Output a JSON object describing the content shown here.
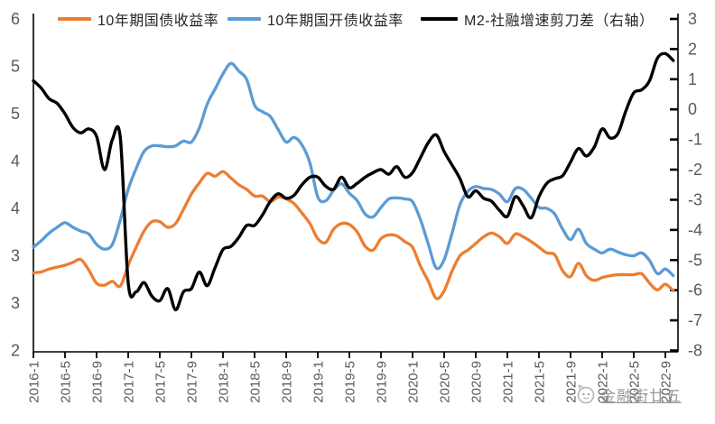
{
  "legend": [
    {
      "label": "10年期国债收益率",
      "color": "#ED7D31"
    },
    {
      "label": "10年期国开债收益率",
      "color": "#5B9BD5"
    },
    {
      "label": "M2-社融增速剪刀差（右轴）",
      "color": "#000000"
    }
  ],
  "watermark": {
    "text": "金融街廿五"
  },
  "axis_text_color": "#595959",
  "chart_data": {
    "type": "line",
    "title": "",
    "grid": false,
    "legend_position": "top",
    "months": [
      "2016-1",
      "2016-2",
      "2016-3",
      "2016-4",
      "2016-5",
      "2016-6",
      "2016-7",
      "2016-8",
      "2016-9",
      "2016-10",
      "2016-11",
      "2016-12",
      "2017-1",
      "2017-2",
      "2017-3",
      "2017-4",
      "2017-5",
      "2017-6",
      "2017-7",
      "2017-8",
      "2017-9",
      "2017-10",
      "2017-11",
      "2017-12",
      "2018-1",
      "2018-2",
      "2018-3",
      "2018-4",
      "2018-5",
      "2018-6",
      "2018-7",
      "2018-8",
      "2018-9",
      "2018-10",
      "2018-11",
      "2018-12",
      "2019-1",
      "2019-2",
      "2019-3",
      "2019-4",
      "2019-5",
      "2019-6",
      "2019-7",
      "2019-8",
      "2019-9",
      "2019-10",
      "2019-11",
      "2019-12",
      "2020-1",
      "2020-2",
      "2020-3",
      "2020-4",
      "2020-5",
      "2020-6",
      "2020-7",
      "2020-8",
      "2020-9",
      "2020-10",
      "2020-11",
      "2020-12",
      "2021-1",
      "2021-2",
      "2021-3",
      "2021-4",
      "2021-5",
      "2021-6",
      "2021-7",
      "2021-8",
      "2021-9",
      "2021-10",
      "2021-11",
      "2021-12",
      "2022-1",
      "2022-2",
      "2022-3",
      "2022-4",
      "2022-5",
      "2022-6",
      "2022-7",
      "2022-8",
      "2022-9",
      "2022-10"
    ],
    "x_tick_every": 4,
    "x_tick_labels": [
      "2016-1",
      "2016-5",
      "2016-9",
      "2017-1",
      "2017-5",
      "2017-9",
      "2018-1",
      "2018-5",
      "2018-9",
      "2019-1",
      "2019-5",
      "2019-9",
      "2020-1",
      "2020-5",
      "2020-9",
      "2021-1",
      "2021-5",
      "2021-9",
      "2022-1",
      "2022-5",
      "2022-9"
    ],
    "left_axis": {
      "min": 2.5,
      "max": 6.0,
      "step": 0.5,
      "tick_labels": [
        "6",
        "5",
        "5",
        "4",
        "4",
        "3",
        "3",
        "2"
      ]
    },
    "right_axis": {
      "min": -8,
      "max": 3,
      "step": 1,
      "tick_labels": [
        "3",
        "2",
        "1",
        "0",
        "-1",
        "-2",
        "-3",
        "-4",
        "-5",
        "-6",
        "-7",
        "-8"
      ]
    },
    "series": [
      {
        "name": "10年期国债收益率",
        "axis": "left",
        "color": "#ED7D31",
        "width": 3.3,
        "values": [
          3.32,
          3.33,
          3.36,
          3.38,
          3.4,
          3.43,
          3.46,
          3.35,
          3.21,
          3.19,
          3.23,
          3.18,
          3.4,
          3.59,
          3.76,
          3.86,
          3.86,
          3.8,
          3.84,
          3.99,
          4.15,
          4.27,
          4.37,
          4.34,
          4.39,
          4.32,
          4.25,
          4.2,
          4.13,
          4.13,
          4.07,
          4.12,
          4.1,
          4.05,
          3.95,
          3.84,
          3.68,
          3.64,
          3.78,
          3.84,
          3.83,
          3.75,
          3.6,
          3.56,
          3.68,
          3.72,
          3.71,
          3.65,
          3.59,
          3.39,
          3.23,
          3.05,
          3.13,
          3.34,
          3.5,
          3.56,
          3.63,
          3.7,
          3.74,
          3.7,
          3.63,
          3.73,
          3.7,
          3.65,
          3.59,
          3.53,
          3.51,
          3.34,
          3.28,
          3.42,
          3.29,
          3.24,
          3.27,
          3.29,
          3.3,
          3.3,
          3.3,
          3.31,
          3.21,
          3.14,
          3.2,
          3.13
        ]
      },
      {
        "name": "10年期国开债收益率",
        "axis": "left",
        "color": "#5B9BD5",
        "width": 3.3,
        "values": [
          3.59,
          3.66,
          3.74,
          3.8,
          3.85,
          3.8,
          3.76,
          3.73,
          3.62,
          3.57,
          3.62,
          3.88,
          4.2,
          4.42,
          4.6,
          4.66,
          4.66,
          4.65,
          4.66,
          4.71,
          4.7,
          4.85,
          5.1,
          5.26,
          5.42,
          5.53,
          5.45,
          5.36,
          5.09,
          5.02,
          4.97,
          4.83,
          4.7,
          4.75,
          4.67,
          4.48,
          4.12,
          4.08,
          4.19,
          4.26,
          4.16,
          4.08,
          3.94,
          3.91,
          4.01,
          4.1,
          4.11,
          4.1,
          4.07,
          3.88,
          3.62,
          3.37,
          3.46,
          3.74,
          4.04,
          4.18,
          4.23,
          4.21,
          4.2,
          4.15,
          4.07,
          4.21,
          4.2,
          4.11,
          4.01,
          4.0,
          3.94,
          3.78,
          3.67,
          3.78,
          3.63,
          3.57,
          3.53,
          3.57,
          3.54,
          3.51,
          3.5,
          3.53,
          3.45,
          3.31,
          3.36,
          3.29
        ]
      },
      {
        "name": "M2-社融增速剪刀差（右轴）",
        "axis": "right",
        "color": "#000000",
        "width": 3.4,
        "values": [
          0.95,
          0.7,
          0.35,
          0.2,
          -0.15,
          -0.6,
          -0.78,
          -0.65,
          -0.9,
          -2.0,
          -1.0,
          -0.95,
          -5.75,
          -6.05,
          -5.75,
          -6.2,
          -6.35,
          -5.95,
          -6.65,
          -6.05,
          -5.95,
          -5.4,
          -5.85,
          -5.25,
          -4.65,
          -4.55,
          -4.25,
          -3.85,
          -3.85,
          -3.5,
          -3.05,
          -2.8,
          -2.95,
          -2.85,
          -2.5,
          -2.25,
          -2.25,
          -2.55,
          -2.65,
          -2.25,
          -2.6,
          -2.45,
          -2.25,
          -2.1,
          -2.0,
          -2.15,
          -1.9,
          -2.25,
          -2.1,
          -1.6,
          -1.1,
          -0.85,
          -1.4,
          -1.85,
          -2.3,
          -2.9,
          -2.7,
          -2.95,
          -3.05,
          -3.35,
          -3.55,
          -2.9,
          -3.2,
          -3.6,
          -2.9,
          -2.45,
          -2.3,
          -2.2,
          -1.75,
          -1.3,
          -1.55,
          -1.25,
          -0.65,
          -0.95,
          -0.8,
          -0.05,
          0.55,
          0.65,
          0.95,
          1.7,
          1.85,
          1.62
        ]
      }
    ]
  }
}
